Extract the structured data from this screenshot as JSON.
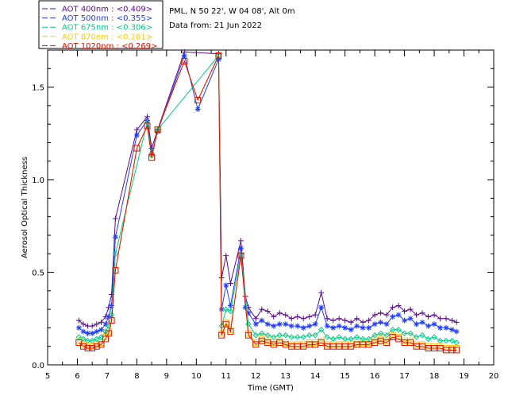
{
  "header": {
    "location": "PML, N 50 22', W 04 08', Alt 0m",
    "date_line": "Data from: 21 Jun 2022"
  },
  "legend": [
    {
      "label": "AOT  400nm : <0.409>",
      "color": "#5a0a8c"
    },
    {
      "label": "AOT  500nm : <0.355>",
      "color": "#1e3cff"
    },
    {
      "label": "AOT  675nm : <0.306>",
      "color": "#00cc88"
    },
    {
      "label": "AOT  870nm : <0.281>",
      "color": "#ffcc00"
    },
    {
      "label": "AOT 1020nm : <0.269>",
      "color": "#dd1100"
    }
  ],
  "chart_data": {
    "type": "line",
    "xlabel": "Time (GMT)",
    "ylabel": "Aerosol Optical Thickness",
    "xlim": [
      5,
      20
    ],
    "ylim": [
      0,
      1.7
    ],
    "xticks": [
      "5",
      "6",
      "7",
      "8",
      "9",
      "10",
      "11",
      "12",
      "13",
      "14",
      "15",
      "16",
      "17",
      "18",
      "19",
      "20"
    ],
    "yticks": [
      "0.0",
      "0.5",
      "1.0",
      "1.5"
    ],
    "series": [
      {
        "name": "AOT  400nm : <0.409>",
        "color": "#5a0a8c",
        "marker": "plus",
        "x": [
          6.05,
          6.2,
          6.35,
          6.5,
          6.65,
          6.8,
          6.95,
          7.05,
          7.15,
          7.28,
          8.0,
          8.35,
          8.5,
          8.7,
          9.6,
          10.75,
          10.85,
          11.0,
          11.15,
          11.5,
          11.65,
          11.75,
          12.0,
          12.2,
          12.4,
          12.6,
          12.8,
          13.0,
          13.2,
          13.4,
          13.6,
          13.8,
          14.0,
          14.2,
          14.4,
          14.6,
          14.8,
          15.0,
          15.2,
          15.4,
          15.6,
          15.8,
          16.0,
          16.2,
          16.4,
          16.6,
          16.8,
          17.0,
          17.2,
          17.4,
          17.6,
          17.8,
          18.0,
          18.2,
          18.4,
          18.6,
          18.75
        ],
        "y": [
          0.24,
          0.22,
          0.21,
          0.21,
          0.22,
          0.23,
          0.26,
          0.31,
          0.38,
          0.79,
          1.27,
          1.34,
          1.17,
          1.27,
          1.69,
          1.68,
          0.47,
          0.59,
          0.44,
          0.67,
          0.37,
          0.31,
          0.25,
          0.3,
          0.29,
          0.26,
          0.28,
          0.27,
          0.25,
          0.26,
          0.25,
          0.26,
          0.27,
          0.39,
          0.25,
          0.24,
          0.25,
          0.24,
          0.23,
          0.25,
          0.23,
          0.24,
          0.27,
          0.28,
          0.27,
          0.31,
          0.32,
          0.29,
          0.3,
          0.27,
          0.28,
          0.26,
          0.27,
          0.25,
          0.25,
          0.24,
          0.23
        ]
      },
      {
        "name": "AOT  500nm : <0.355>",
        "color": "#1e3cff",
        "marker": "star",
        "x": [
          6.05,
          6.2,
          6.35,
          6.5,
          6.65,
          6.8,
          6.95,
          7.05,
          7.15,
          7.28,
          8.0,
          8.35,
          8.5,
          8.7,
          9.6,
          10.05,
          10.75,
          10.85,
          11.0,
          11.15,
          11.5,
          11.65,
          11.75,
          12.0,
          12.2,
          12.4,
          12.6,
          12.8,
          13.0,
          13.2,
          13.4,
          13.6,
          13.8,
          14.0,
          14.2,
          14.4,
          14.6,
          14.8,
          15.0,
          15.2,
          15.4,
          15.6,
          15.8,
          16.0,
          16.2,
          16.4,
          16.6,
          16.8,
          17.0,
          17.2,
          17.4,
          17.6,
          17.8,
          18.0,
          18.2,
          18.4,
          18.6,
          18.75
        ],
        "y": [
          0.2,
          0.18,
          0.17,
          0.17,
          0.18,
          0.19,
          0.22,
          0.26,
          0.32,
          0.69,
          1.24,
          1.32,
          1.14,
          1.26,
          1.67,
          1.38,
          1.65,
          0.3,
          0.43,
          0.32,
          0.63,
          0.31,
          0.28,
          0.22,
          0.24,
          0.22,
          0.21,
          0.22,
          0.22,
          0.21,
          0.21,
          0.2,
          0.21,
          0.22,
          0.31,
          0.21,
          0.2,
          0.21,
          0.2,
          0.19,
          0.21,
          0.2,
          0.2,
          0.22,
          0.23,
          0.22,
          0.26,
          0.27,
          0.24,
          0.25,
          0.22,
          0.23,
          0.21,
          0.22,
          0.2,
          0.2,
          0.19,
          0.18
        ]
      },
      {
        "name": "AOT  675nm : <0.306>",
        "color": "#00cc88",
        "marker": "diamond",
        "x": [
          6.05,
          6.2,
          6.35,
          6.5,
          6.65,
          6.8,
          6.95,
          7.05,
          7.15,
          7.28,
          8.35,
          8.5,
          8.7,
          10.75,
          10.85,
          11.0,
          11.15,
          11.5,
          11.75,
          12.0,
          12.2,
          12.4,
          12.6,
          12.8,
          13.0,
          13.2,
          13.4,
          13.6,
          13.8,
          14.0,
          14.2,
          14.4,
          14.6,
          14.8,
          15.0,
          15.2,
          15.4,
          15.6,
          15.8,
          16.0,
          16.2,
          16.4,
          16.6,
          16.8,
          17.0,
          17.2,
          17.4,
          17.6,
          17.8,
          18.0,
          18.2,
          18.4,
          18.6,
          18.75
        ],
        "y": [
          0.15,
          0.14,
          0.13,
          0.13,
          0.14,
          0.15,
          0.18,
          0.21,
          0.27,
          0.6,
          1.31,
          1.13,
          1.27,
          1.67,
          0.21,
          0.3,
          0.29,
          0.6,
          0.22,
          0.16,
          0.17,
          0.16,
          0.15,
          0.16,
          0.16,
          0.15,
          0.15,
          0.15,
          0.16,
          0.16,
          0.19,
          0.15,
          0.14,
          0.15,
          0.14,
          0.14,
          0.15,
          0.14,
          0.14,
          0.16,
          0.17,
          0.16,
          0.19,
          0.19,
          0.17,
          0.17,
          0.15,
          0.16,
          0.14,
          0.15,
          0.13,
          0.13,
          0.13,
          0.12
        ]
      },
      {
        "name": "AOT  870nm : <0.281>",
        "color": "#ffcc00",
        "marker": "square",
        "x": [
          6.05,
          6.2,
          6.35,
          6.5,
          6.65,
          6.8,
          6.95,
          7.05,
          7.15,
          7.28,
          8.0,
          8.35,
          8.5,
          8.7,
          9.6,
          10.05,
          10.75,
          10.85,
          11.0,
          11.15,
          11.5,
          11.75,
          12.0,
          12.2,
          12.4,
          12.6,
          12.8,
          13.0,
          13.2,
          13.4,
          13.6,
          13.8,
          14.0,
          14.2,
          14.4,
          14.6,
          14.8,
          15.0,
          15.2,
          15.4,
          15.6,
          15.8,
          16.0,
          16.2,
          16.4,
          16.6,
          16.8,
          17.0,
          17.2,
          17.4,
          17.6,
          17.8,
          18.0,
          18.2,
          18.4,
          18.6,
          18.75
        ],
        "y": [
          0.13,
          0.11,
          0.1,
          0.1,
          0.11,
          0.12,
          0.15,
          0.18,
          0.24,
          0.51,
          1.17,
          1.29,
          1.12,
          1.27,
          1.64,
          1.43,
          1.67,
          0.17,
          0.23,
          0.19,
          0.59,
          0.17,
          0.12,
          0.14,
          0.13,
          0.12,
          0.13,
          0.12,
          0.11,
          0.11,
          0.11,
          0.12,
          0.12,
          0.13,
          0.11,
          0.11,
          0.11,
          0.11,
          0.11,
          0.12,
          0.12,
          0.12,
          0.13,
          0.14,
          0.13,
          0.16,
          0.15,
          0.13,
          0.13,
          0.11,
          0.11,
          0.1,
          0.1,
          0.1,
          0.09,
          0.09,
          0.09
        ]
      },
      {
        "name": "AOT 1020nm : <0.269>",
        "color": "#dd1100",
        "marker": "square",
        "x": [
          6.05,
          6.2,
          6.35,
          6.5,
          6.65,
          6.8,
          6.95,
          7.05,
          7.15,
          7.28,
          8.0,
          8.35,
          8.5,
          8.7,
          9.6,
          10.05,
          10.75,
          10.85,
          11.0,
          11.15,
          11.5,
          11.75,
          12.0,
          12.2,
          12.4,
          12.6,
          12.8,
          13.0,
          13.2,
          13.4,
          13.6,
          13.8,
          14.0,
          14.2,
          14.4,
          14.6,
          14.8,
          15.0,
          15.2,
          15.4,
          15.6,
          15.8,
          16.0,
          16.2,
          16.4,
          16.6,
          16.8,
          17.0,
          17.2,
          17.4,
          17.6,
          17.8,
          18.0,
          18.2,
          18.4,
          18.6,
          18.75
        ],
        "y": [
          0.12,
          0.1,
          0.09,
          0.09,
          0.1,
          0.11,
          0.14,
          0.17,
          0.24,
          0.51,
          1.17,
          1.29,
          1.12,
          1.27,
          1.64,
          1.43,
          1.67,
          0.16,
          0.22,
          0.18,
          0.59,
          0.16,
          0.11,
          0.13,
          0.12,
          0.11,
          0.12,
          0.11,
          0.1,
          0.1,
          0.1,
          0.11,
          0.11,
          0.12,
          0.1,
          0.1,
          0.1,
          0.1,
          0.1,
          0.11,
          0.11,
          0.11,
          0.12,
          0.13,
          0.12,
          0.15,
          0.14,
          0.12,
          0.12,
          0.1,
          0.1,
          0.09,
          0.09,
          0.09,
          0.08,
          0.08,
          0.08
        ]
      }
    ]
  }
}
